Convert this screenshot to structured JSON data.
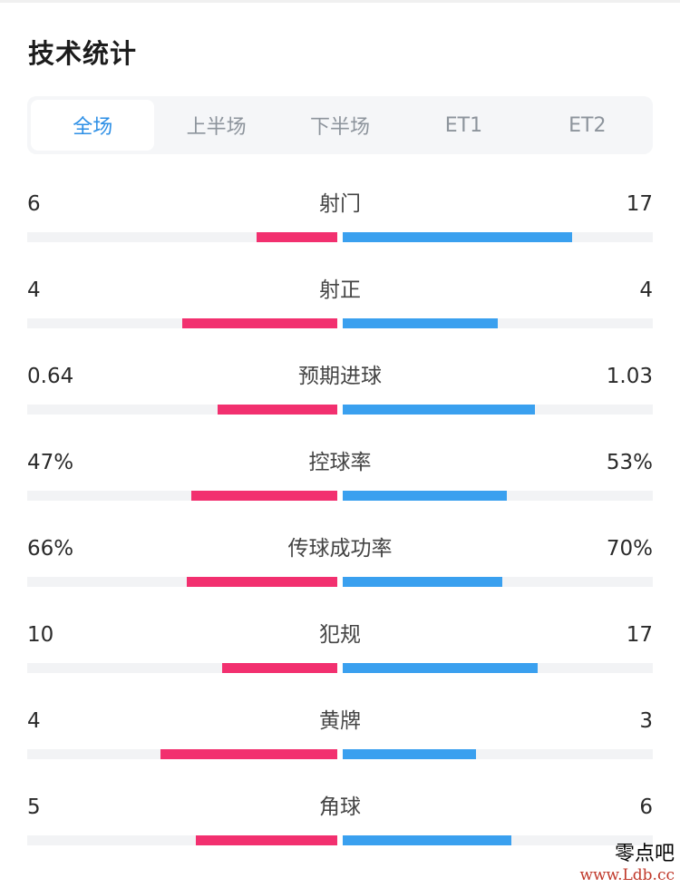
{
  "title": "技术统计",
  "tabs": [
    {
      "label": "全场",
      "active": true
    },
    {
      "label": "上半场",
      "active": false
    },
    {
      "label": "下半场",
      "active": false
    },
    {
      "label": "ET1",
      "active": false
    },
    {
      "label": "ET2",
      "active": false
    }
  ],
  "colors": {
    "home": "#f2306f",
    "away": "#3aa0ef",
    "active_tab": "#2d8fe6"
  },
  "stats": [
    {
      "label": "射门",
      "home": "6",
      "away": "17",
      "home_fill": 0.26,
      "away_fill": 0.74
    },
    {
      "label": "射正",
      "home": "4",
      "away": "4",
      "home_fill": 0.5,
      "away_fill": 0.5
    },
    {
      "label": "预期进球",
      "home": "0.64",
      "away": "1.03",
      "home_fill": 0.385,
      "away_fill": 0.62
    },
    {
      "label": "控球率",
      "home": "47%",
      "away": "53%",
      "home_fill": 0.47,
      "away_fill": 0.53
    },
    {
      "label": "传球成功率",
      "home": "66%",
      "away": "70%",
      "home_fill": 0.485,
      "away_fill": 0.515
    },
    {
      "label": "犯规",
      "home": "10",
      "away": "17",
      "home_fill": 0.37,
      "away_fill": 0.63
    },
    {
      "label": "黄牌",
      "home": "4",
      "away": "3",
      "home_fill": 0.57,
      "away_fill": 0.43
    },
    {
      "label": "角球",
      "home": "5",
      "away": "6",
      "home_fill": 0.455,
      "away_fill": 0.545
    }
  ],
  "watermark": {
    "name": "零点吧",
    "url": "www.Ldb.cc"
  }
}
